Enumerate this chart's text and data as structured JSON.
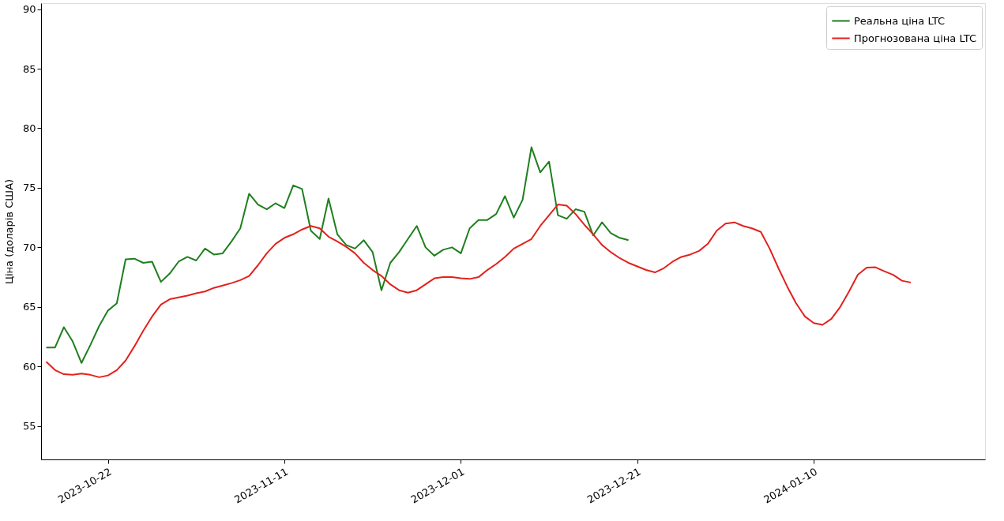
{
  "chart_data": {
    "type": "line",
    "ylabel": "Ціна (доларів США)",
    "xlim": [
      "2023-10-14T10:00",
      "2024-01-29T10:00"
    ],
    "xticks": [
      "2023-10-22",
      "2023-11-11",
      "2023-12-01",
      "2023-12-21",
      "2024-01-10"
    ],
    "ylim": [
      52.2,
      90.5
    ],
    "yticks": [
      55,
      60,
      65,
      70,
      75,
      80,
      85,
      90
    ],
    "x": [
      "2023-10-15",
      "2023-10-16",
      "2023-10-17",
      "2023-10-18",
      "2023-10-19",
      "2023-10-20",
      "2023-10-21",
      "2023-10-22",
      "2023-10-23",
      "2023-10-24",
      "2023-10-25",
      "2023-10-26",
      "2023-10-27",
      "2023-10-28",
      "2023-10-29",
      "2023-10-30",
      "2023-10-31",
      "2023-11-01",
      "2023-11-02",
      "2023-11-03",
      "2023-11-04",
      "2023-11-05",
      "2023-11-06",
      "2023-11-07",
      "2023-11-08",
      "2023-11-09",
      "2023-11-10",
      "2023-11-11",
      "2023-11-12",
      "2023-11-13",
      "2023-11-14",
      "2023-11-15",
      "2023-11-16",
      "2023-11-17",
      "2023-11-18",
      "2023-11-19",
      "2023-11-20",
      "2023-11-21",
      "2023-11-22",
      "2023-11-23",
      "2023-11-24",
      "2023-11-25",
      "2023-11-26",
      "2023-11-27",
      "2023-11-28",
      "2023-11-29",
      "2023-11-30",
      "2023-12-01",
      "2023-12-02",
      "2023-12-03",
      "2023-12-04",
      "2023-12-05",
      "2023-12-06",
      "2023-12-07",
      "2023-12-08",
      "2023-12-09",
      "2023-12-10",
      "2023-12-11",
      "2023-12-12",
      "2023-12-13",
      "2023-12-14",
      "2023-12-15",
      "2023-12-16",
      "2023-12-17",
      "2023-12-18",
      "2023-12-19",
      "2023-12-20",
      "2023-12-21",
      "2023-12-22",
      "2023-12-23",
      "2023-12-24",
      "2023-12-25",
      "2023-12-26",
      "2023-12-27",
      "2023-12-28",
      "2023-12-29",
      "2023-12-30",
      "2023-12-31",
      "2024-01-01",
      "2024-01-02",
      "2024-01-03",
      "2024-01-04",
      "2024-01-05",
      "2024-01-06",
      "2024-01-07",
      "2024-01-08",
      "2024-01-09",
      "2024-01-10",
      "2024-01-11",
      "2024-01-12",
      "2024-01-13",
      "2024-01-14",
      "2024-01-15",
      "2024-01-16",
      "2024-01-17",
      "2024-01-18",
      "2024-01-19",
      "2024-01-20",
      "2024-01-21"
    ],
    "grid": false,
    "legend": "top right",
    "line_style": "solid",
    "marker": "none",
    "series": [
      {
        "name": "Реальна ціна LTC",
        "color": "#1f7f1f",
        "x": [
          "2023-10-15",
          "2023-10-16",
          "2023-10-17",
          "2023-10-18",
          "2023-10-19",
          "2023-10-20",
          "2023-10-21",
          "2023-10-22",
          "2023-10-23",
          "2023-10-24",
          "2023-10-25",
          "2023-10-26",
          "2023-10-27",
          "2023-10-28",
          "2023-10-29",
          "2023-10-30",
          "2023-10-31",
          "2023-11-01",
          "2023-11-02",
          "2023-11-03",
          "2023-11-04",
          "2023-11-05",
          "2023-11-06",
          "2023-11-07",
          "2023-11-08",
          "2023-11-09",
          "2023-11-10",
          "2023-11-11",
          "2023-11-12",
          "2023-11-13",
          "2023-11-14",
          "2023-11-15",
          "2023-11-16",
          "2023-11-17",
          "2023-11-18",
          "2023-11-19",
          "2023-11-20",
          "2023-11-21",
          "2023-11-22",
          "2023-11-23",
          "2023-11-24",
          "2023-11-25",
          "2023-11-26",
          "2023-11-27",
          "2023-11-28",
          "2023-11-29",
          "2023-11-30",
          "2023-12-01",
          "2023-12-02",
          "2023-12-03",
          "2023-12-04",
          "2023-12-05",
          "2023-12-06",
          "2023-12-07",
          "2023-12-08",
          "2023-12-09",
          "2023-12-10",
          "2023-12-11",
          "2023-12-12",
          "2023-12-13",
          "2023-12-14",
          "2023-12-15",
          "2023-12-16",
          "2023-12-17",
          "2023-12-18",
          "2023-12-19",
          "2023-12-20"
        ],
        "values": [
          61.6,
          61.6,
          63.3,
          62.1,
          60.3,
          61.8,
          63.4,
          64.7,
          65.3,
          69.0,
          69.05,
          68.7,
          68.8,
          67.1,
          67.8,
          68.8,
          69.2,
          68.9,
          69.9,
          69.4,
          69.5,
          70.5,
          71.6,
          74.5,
          73.6,
          73.2,
          73.7,
          73.3,
          75.2,
          74.9,
          71.4,
          70.7,
          74.1,
          71.1,
          70.2,
          69.9,
          70.6,
          69.6,
          66.4,
          68.7,
          69.6,
          70.7,
          71.8,
          70.0,
          69.3,
          69.8,
          70.0,
          69.5,
          71.6,
          72.3,
          72.3,
          72.8,
          74.3,
          72.5,
          74.0,
          78.4,
          76.3,
          77.2,
          72.7,
          72.4,
          73.2,
          73.0,
          71.0,
          72.1,
          71.2,
          70.8,
          70.6
        ]
      },
      {
        "name": "Прогнозована ціна LTC",
        "color": "#e3211c",
        "values": [
          60.4,
          59.7,
          59.35,
          59.3,
          59.4,
          59.3,
          59.1,
          59.25,
          59.7,
          60.5,
          61.7,
          63.0,
          64.2,
          65.2,
          65.65,
          65.8,
          65.95,
          66.15,
          66.3,
          66.6,
          66.8,
          67.0,
          67.25,
          67.6,
          68.5,
          69.5,
          70.3,
          70.8,
          71.1,
          71.5,
          71.8,
          71.6,
          70.9,
          70.5,
          70.05,
          69.5,
          68.7,
          68.1,
          67.6,
          66.9,
          66.4,
          66.2,
          66.4,
          66.9,
          67.4,
          67.5,
          67.5,
          67.4,
          67.35,
          67.5,
          68.1,
          68.6,
          69.2,
          69.9,
          70.3,
          70.7,
          71.8,
          72.7,
          73.6,
          73.5,
          72.8,
          71.9,
          71.1,
          70.2,
          69.6,
          69.1,
          68.7,
          68.4,
          68.1,
          67.9,
          68.25,
          68.8,
          69.2,
          69.4,
          69.7,
          70.3,
          71.4,
          72.0,
          72.1,
          71.8,
          71.6,
          71.3,
          69.9,
          68.25,
          66.7,
          65.3,
          64.2,
          63.65,
          63.5,
          64.0,
          65.0,
          66.3,
          67.7,
          68.3,
          68.33,
          68.0,
          67.7,
          67.2,
          67.05
        ]
      }
    ]
  }
}
